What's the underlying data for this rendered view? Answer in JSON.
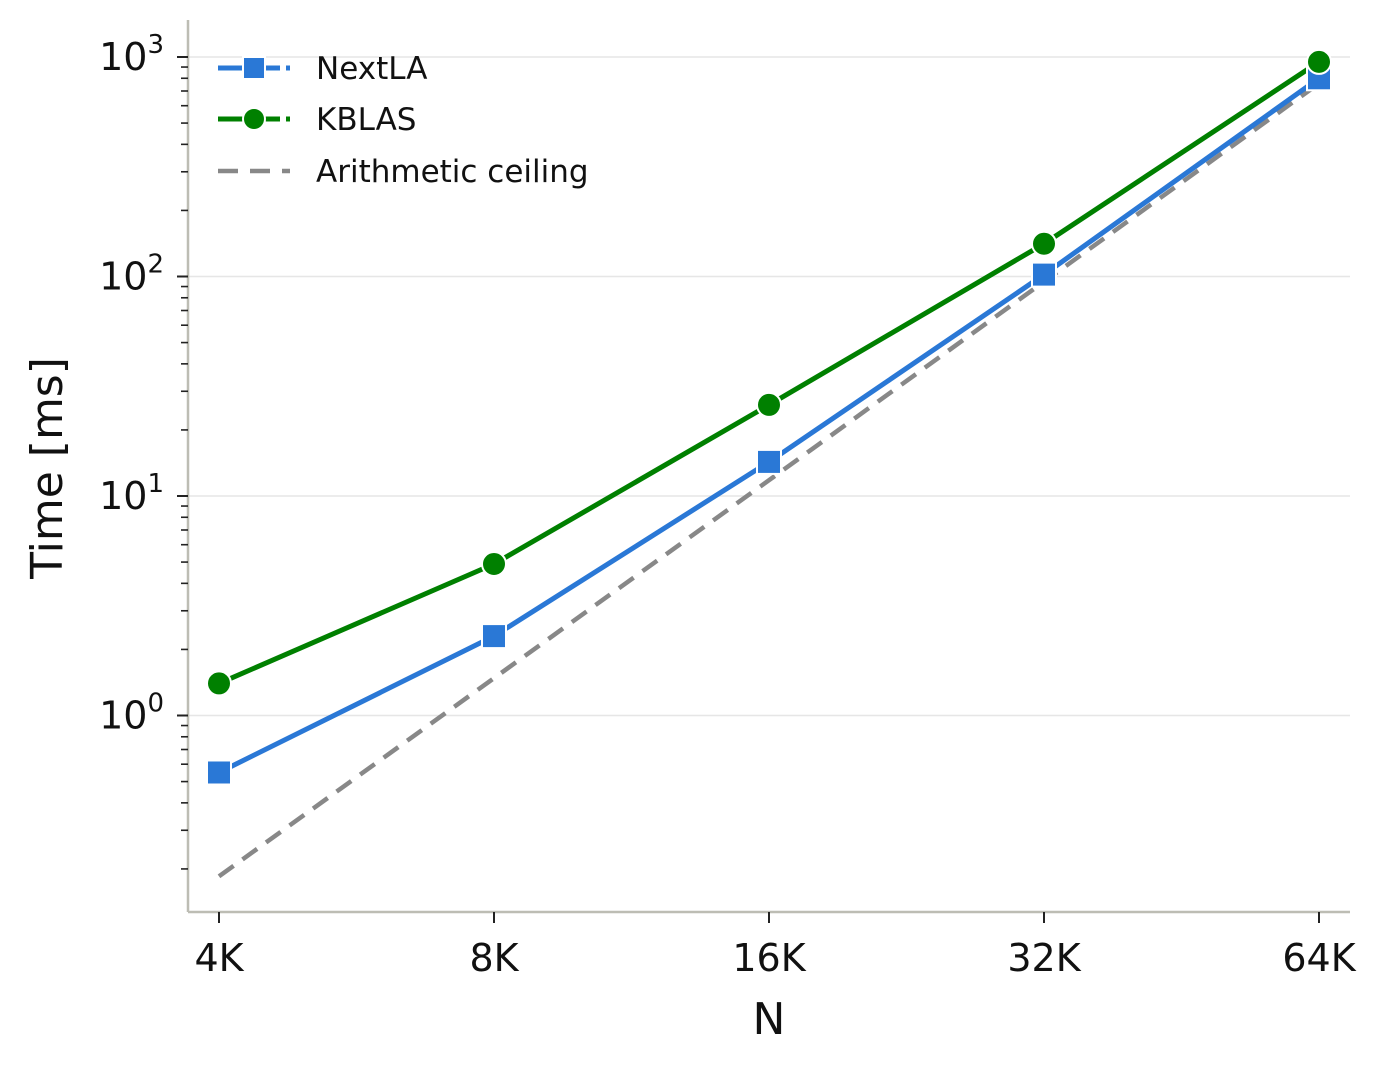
{
  "chart_data": {
    "type": "line",
    "xlabel": "N",
    "ylabel": "Time [ms]",
    "x_categories": [
      "4K",
      "8K",
      "16K",
      "32K",
      "64K"
    ],
    "y_scale": "log",
    "ylim": [
      0.13,
      1400
    ],
    "y_ticks": [
      {
        "value": 1,
        "base": "10",
        "exp": "0"
      },
      {
        "value": 10,
        "base": "10",
        "exp": "1"
      },
      {
        "value": 100,
        "base": "10",
        "exp": "2"
      },
      {
        "value": 1000,
        "base": "10",
        "exp": "3"
      }
    ],
    "grid": "horizontal-major",
    "legend_position": "top-left",
    "series": [
      {
        "name": "NextLA",
        "color": "#2a78d6",
        "marker": "square",
        "style": "solid",
        "values": [
          0.55,
          2.3,
          14.3,
          102,
          800
        ]
      },
      {
        "name": "KBLAS",
        "color": "#008000",
        "marker": "circle",
        "style": "solid",
        "values": [
          1.4,
          4.9,
          26,
          141,
          950
        ]
      },
      {
        "name": "Arithmetic ceiling",
        "color": "#888888",
        "marker": "none",
        "style": "dashed",
        "values": [
          0.185,
          1.48,
          11.8,
          94.7,
          758
        ]
      }
    ]
  }
}
